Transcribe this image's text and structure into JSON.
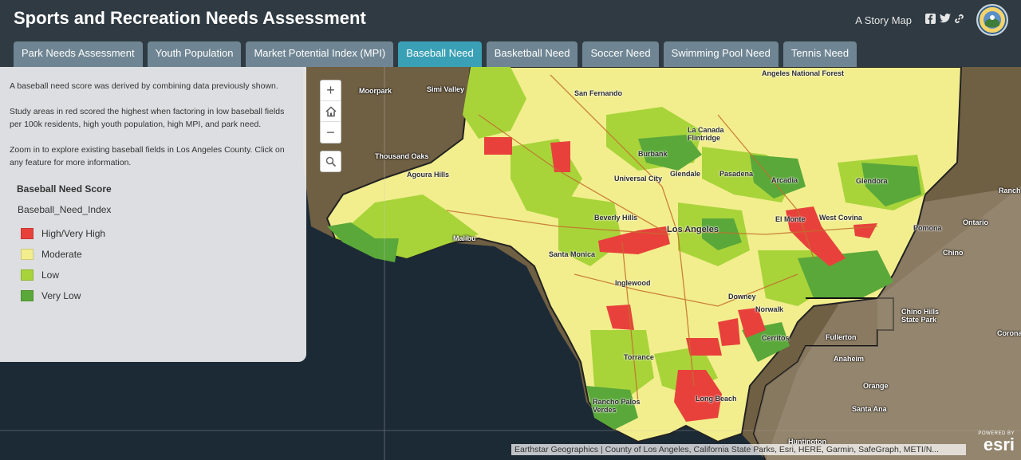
{
  "header": {
    "title": "Sports and Recreation Needs Assessment",
    "story_map_label": "A Story Map",
    "share_icons": [
      "facebook-icon",
      "twitter-icon",
      "link-icon"
    ],
    "logo_icon": "county-seal-icon"
  },
  "tabs": [
    {
      "label": "Park Needs Assessment",
      "active": false
    },
    {
      "label": "Youth Population",
      "active": false
    },
    {
      "label": "Market Potential Index (MPI)",
      "active": false
    },
    {
      "label": "Baseball Need",
      "active": true
    },
    {
      "label": "Basketball Need",
      "active": false
    },
    {
      "label": "Soccer Need",
      "active": false
    },
    {
      "label": "Swimming Pool Need",
      "active": false
    },
    {
      "label": "Tennis Need",
      "active": false
    }
  ],
  "panel": {
    "paragraphs": [
      "A baseball need score was derived by combining data previously shown.",
      "Study areas in red scored the highest when factoring in low baseball fields per 100k residents, high youth population, high MPI, and park need.",
      "Zoom in to explore existing baseball fields in Los Angeles County. Click on any feature for more information."
    ],
    "legend_title": "Baseball Need Score",
    "legend_field": "Baseball_Need_Index",
    "legend_items": [
      {
        "label": "High/Very High",
        "color": "#e8413c"
      },
      {
        "label": "Moderate",
        "color": "#f2ee8d"
      },
      {
        "label": "Low",
        "color": "#a8d43a"
      },
      {
        "label": "Very Low",
        "color": "#5aa83a"
      }
    ]
  },
  "map_controls": {
    "zoom_in": "+",
    "zoom_out": "−",
    "home_icon": "home-icon",
    "search_icon": "search-icon"
  },
  "map_labels": [
    "Angeles National Forest",
    "Simi Valley",
    "Moorpark",
    "San Fernando",
    "La Canada Flintridge",
    "Thousand Oaks",
    "Burbank",
    "Agoura Hills",
    "Universal City",
    "Glendale",
    "Pasadena",
    "Arcadia",
    "Glendora",
    "Beverly Hills",
    "Los Angeles",
    "El Monte",
    "West Covina",
    "Ontario",
    "Pomona",
    "Malibu",
    "Santa Monica",
    "Chino",
    "Inglewood",
    "Downey",
    "Norwalk",
    "Chino Hills State Park",
    "Fullerton",
    "Cerritos",
    "Torrance",
    "Anaheim",
    "Orange",
    "Long Beach",
    "Rancho Palos Verdes",
    "Santa Ana",
    "Huntington",
    "Ranch",
    "Corona"
  ],
  "attribution": "Earthstar Geographics | County of Los Angeles, California State Parks, Esri, HERE, Garmin, SafeGraph, METI/N...",
  "esri": {
    "powered_by": "POWERED BY",
    "logo": "esri"
  }
}
